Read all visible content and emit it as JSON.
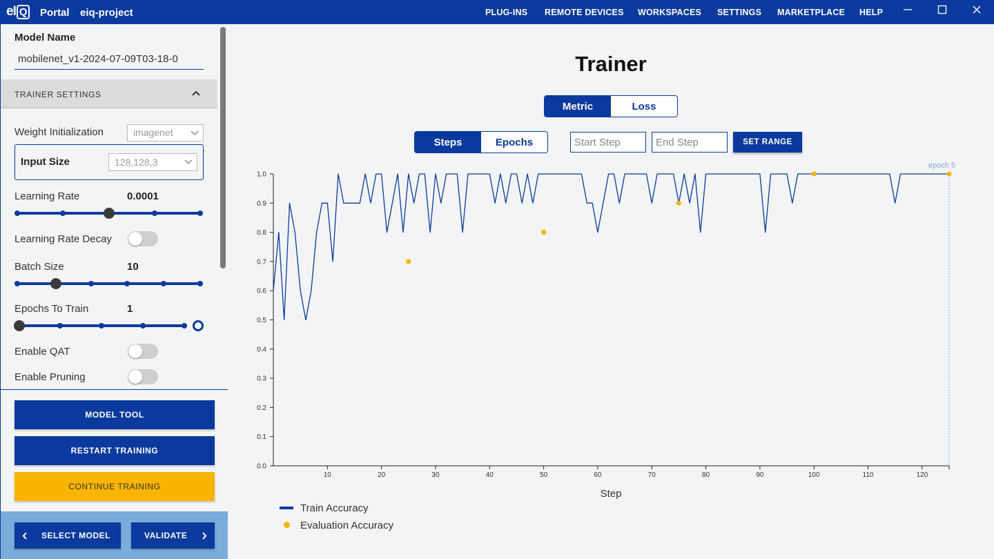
{
  "titlebar": {
    "logo": {
      "e": "e",
      "i": "I",
      "q": "Q"
    },
    "app_name": "Portal",
    "project": "eiq-project",
    "nav": [
      "PLUG-INS",
      "REMOTE DEVICES",
      "WORKSPACES",
      "SETTINGS",
      "MARKETPLACE",
      "HELP"
    ],
    "icons": [
      "minimize-icon",
      "maximize-icon",
      "close-icon"
    ],
    "bg_color": "#0a3a9e"
  },
  "sidebar": {
    "model_name_label": "Model Name",
    "model_name_value": "mobilenet_v1-2024-07-09T03-18-0",
    "section_title": "TRAINER SETTINGS",
    "weight_init": {
      "label": "Weight Initialization",
      "value": "imagenet"
    },
    "input_size": {
      "label": "Input Size",
      "value": "128,128,3"
    },
    "learning_rate": {
      "label": "Learning Rate",
      "value": "0.0001",
      "stops": 5,
      "selected_index": 2
    },
    "learning_rate_decay": {
      "label": "Learning Rate Decay",
      "on": false
    },
    "batch_size": {
      "label": "Batch Size",
      "value": "10",
      "stops": 6,
      "selected_index": 1
    },
    "epochs": {
      "label": "Epochs To Train",
      "value": "1",
      "stops": 6,
      "selected_index": 0
    },
    "enable_qat": {
      "label": "Enable QAT",
      "on": false
    },
    "enable_pruning": {
      "label": "Enable Pruning",
      "on": false
    },
    "buttons": {
      "model_tool": "MODEL TOOL",
      "restart": "RESTART TRAINING",
      "continue": "CONTINUE TRAINING"
    },
    "nav": {
      "back": "SELECT MODEL",
      "next": "VALIDATE"
    },
    "accent": "#0a3a9e",
    "warn_color": "#f8b400"
  },
  "main": {
    "title": "Trainer",
    "view_tabs": [
      "Metric",
      "Loss"
    ],
    "view_active": 0,
    "axis_tabs": [
      "Steps",
      "Epochs"
    ],
    "axis_active": 0,
    "start_placeholder": "Start Step",
    "end_placeholder": "End Step",
    "set_range": "SET RANGE",
    "legend": {
      "train": "Train Accuracy",
      "eval": "Evaluation Accuracy"
    }
  },
  "chart_data": {
    "type": "line",
    "xlabel": "Step",
    "ylabel": "",
    "xlim": [
      0,
      125
    ],
    "ylim": [
      0.0,
      1.0
    ],
    "xticks": [
      10,
      20,
      30,
      40,
      50,
      60,
      70,
      80,
      90,
      100,
      110,
      120
    ],
    "yticks": [
      "0.0",
      "0.1",
      "0.2",
      "0.3",
      "0.4",
      "0.5",
      "0.6",
      "0.7",
      "0.8",
      "0.9",
      "1.0"
    ],
    "grid": false,
    "legend_position": "bottom-left",
    "annotation": {
      "x": 125,
      "label": "epoch 5"
    },
    "series": [
      {
        "name": "Train Accuracy",
        "color": "#0a3a9e",
        "style": "line",
        "x": [
          0,
          1,
          2,
          3,
          4,
          5,
          6,
          7,
          8,
          9,
          10,
          11,
          12,
          13,
          14,
          15,
          16,
          17,
          18,
          19,
          20,
          21,
          22,
          23,
          24,
          25,
          26,
          27,
          28,
          29,
          30,
          31,
          32,
          33,
          34,
          35,
          36,
          37,
          38,
          39,
          40,
          41,
          42,
          43,
          44,
          45,
          46,
          47,
          48,
          49,
          50,
          51,
          52,
          53,
          54,
          55,
          56,
          57,
          58,
          59,
          60,
          61,
          62,
          63,
          64,
          65,
          66,
          67,
          68,
          69,
          70,
          71,
          72,
          73,
          74,
          75,
          76,
          77,
          78,
          79,
          80,
          81,
          82,
          83,
          84,
          85,
          86,
          87,
          88,
          89,
          90,
          91,
          92,
          93,
          94,
          95,
          96,
          97,
          98,
          99,
          100,
          101,
          102,
          103,
          104,
          105,
          106,
          107,
          108,
          109,
          110,
          111,
          112,
          113,
          114,
          115,
          116,
          117,
          118,
          119,
          120,
          121,
          122,
          123,
          124,
          125
        ],
        "values": [
          0.6,
          0.8,
          0.5,
          0.9,
          0.8,
          0.6,
          0.5,
          0.6,
          0.8,
          0.9,
          0.9,
          0.7,
          1.0,
          0.9,
          0.9,
          0.9,
          0.9,
          1.0,
          0.9,
          1.0,
          1.0,
          0.8,
          0.9,
          1.0,
          0.8,
          1.0,
          0.9,
          1.0,
          1.0,
          0.8,
          1.0,
          0.9,
          1.0,
          1.0,
          1.0,
          0.8,
          1.0,
          1.0,
          1.0,
          1.0,
          1.0,
          0.9,
          1.0,
          0.9,
          1.0,
          1.0,
          0.9,
          1.0,
          0.9,
          1.0,
          1.0,
          1.0,
          1.0,
          1.0,
          1.0,
          1.0,
          1.0,
          1.0,
          0.9,
          0.9,
          0.8,
          0.9,
          1.0,
          1.0,
          0.9,
          1.0,
          1.0,
          1.0,
          1.0,
          1.0,
          0.9,
          1.0,
          1.0,
          1.0,
          1.0,
          0.9,
          1.0,
          0.9,
          1.0,
          0.8,
          1.0,
          1.0,
          1.0,
          1.0,
          1.0,
          1.0,
          1.0,
          1.0,
          1.0,
          1.0,
          1.0,
          0.8,
          1.0,
          1.0,
          1.0,
          1.0,
          0.9,
          1.0,
          1.0,
          1.0,
          1.0,
          1.0,
          1.0,
          1.0,
          1.0,
          1.0,
          1.0,
          1.0,
          1.0,
          1.0,
          1.0,
          1.0,
          1.0,
          1.0,
          1.0,
          0.9,
          1.0,
          1.0,
          1.0,
          1.0,
          1.0,
          1.0,
          1.0,
          1.0,
          1.0,
          1.0
        ]
      },
      {
        "name": "Evaluation Accuracy",
        "color": "#f8b400",
        "style": "scatter",
        "x": [
          25,
          50,
          75,
          100,
          125
        ],
        "values": [
          0.7,
          0.8,
          0.9,
          1.0,
          1.0
        ]
      }
    ]
  }
}
